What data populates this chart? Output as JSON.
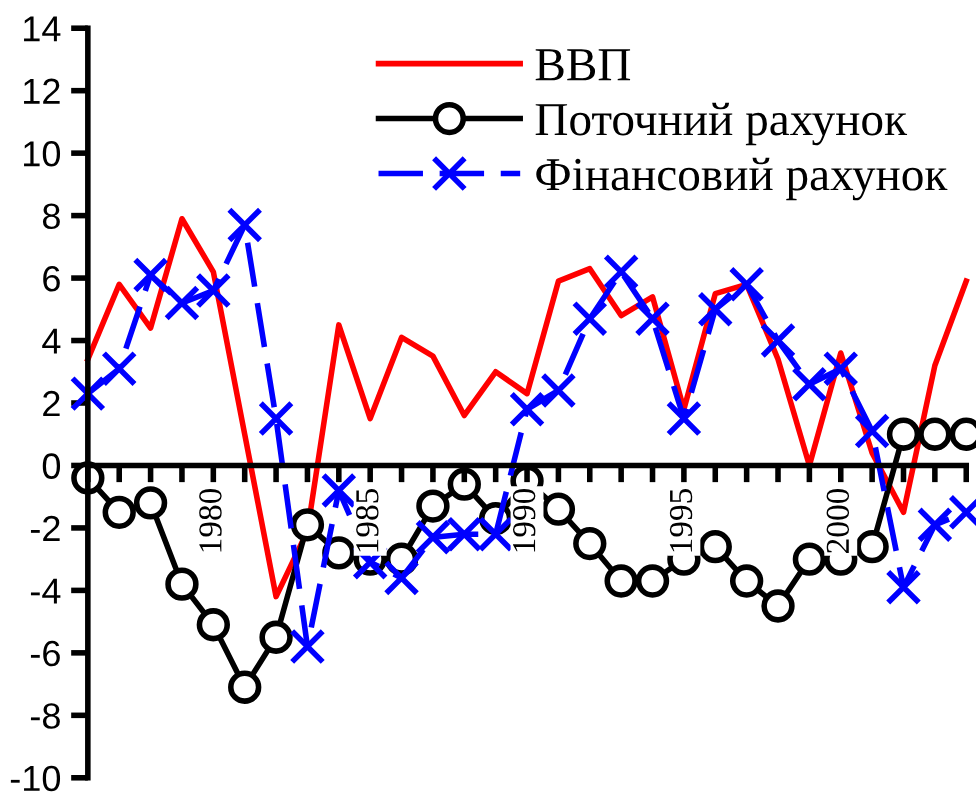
{
  "chart_data": {
    "type": "line",
    "x": [
      1976,
      1977,
      1978,
      1979,
      1980,
      1981,
      1982,
      1983,
      1984,
      1985,
      1986,
      1987,
      1988,
      1989,
      1990,
      1991,
      1992,
      1993,
      1994,
      1995,
      1996,
      1997,
      1998,
      1999,
      2000,
      2001,
      2002,
      2003,
      2004
    ],
    "series": [
      {
        "name": "ВВП",
        "color": "#ff0000",
        "marker": "none",
        "line_style": "solid",
        "values": [
          3.4,
          5.8,
          4.4,
          7.9,
          6.2,
          1.0,
          -4.2,
          -2.1,
          4.5,
          1.5,
          4.1,
          3.5,
          1.6,
          3.0,
          2.3,
          5.9,
          6.3,
          4.8,
          5.4,
          1.8,
          5.5,
          5.8,
          3.4,
          0.0,
          3.6,
          0.4,
          -1.5,
          3.2,
          5.9
        ]
      },
      {
        "name": "Поточний рахунок",
        "color": "#000000",
        "marker": "circle",
        "line_style": "solid",
        "values": [
          -0.4,
          -1.5,
          -1.2,
          -3.8,
          -5.1,
          -7.1,
          -5.5,
          -1.9,
          -2.8,
          -3.0,
          -3.0,
          -1.3,
          -0.6,
          -1.7,
          -0.5,
          -1.4,
          -2.5,
          -3.7,
          -3.7,
          -3.0,
          -2.6,
          -3.7,
          -4.5,
          -3.0,
          -3.0,
          -2.6,
          1.0,
          1.0,
          1.0
        ]
      },
      {
        "name": "Фінансовий рахунок",
        "color": "#0000ff",
        "marker": "cross",
        "line_style": "dashed",
        "values": [
          2.3,
          3.1,
          6.1,
          5.2,
          5.6,
          7.7,
          1.5,
          -5.8,
          -0.8,
          -3.1,
          -3.6,
          -2.3,
          -2.2,
          -2.2,
          1.8,
          2.4,
          4.7,
          6.2,
          4.7,
          1.5,
          5.0,
          5.8,
          4.0,
          2.6,
          3.1,
          1.1,
          -3.9,
          -1.9,
          -1.5
        ]
      }
    ],
    "xlim": [
      1976,
      2004
    ],
    "xticks": [
      {
        "value": 1976,
        "label": null
      },
      {
        "value": 1977,
        "label": null
      },
      {
        "value": 1978,
        "label": null
      },
      {
        "value": 1979,
        "label": null
      },
      {
        "value": 1980,
        "label": "1980"
      },
      {
        "value": 1981,
        "label": null
      },
      {
        "value": 1982,
        "label": null
      },
      {
        "value": 1983,
        "label": null
      },
      {
        "value": 1984,
        "label": null
      },
      {
        "value": 1985,
        "label": "1985"
      },
      {
        "value": 1986,
        "label": null
      },
      {
        "value": 1987,
        "label": null
      },
      {
        "value": 1988,
        "label": null
      },
      {
        "value": 1989,
        "label": null
      },
      {
        "value": 1990,
        "label": "1990"
      },
      {
        "value": 1991,
        "label": null
      },
      {
        "value": 1992,
        "label": null
      },
      {
        "value": 1993,
        "label": null
      },
      {
        "value": 1994,
        "label": null
      },
      {
        "value": 1995,
        "label": "1995"
      },
      {
        "value": 1996,
        "label": null
      },
      {
        "value": 1997,
        "label": null
      },
      {
        "value": 1998,
        "label": null
      },
      {
        "value": 1999,
        "label": null
      },
      {
        "value": 2000,
        "label": "2000"
      },
      {
        "value": 2001,
        "label": null
      },
      {
        "value": 2002,
        "label": null
      },
      {
        "value": 2003,
        "label": null
      },
      {
        "value": 2004,
        "label": null
      }
    ],
    "ylim": [
      -10,
      14
    ],
    "yticks": [
      -10,
      -8,
      -6,
      -4,
      -2,
      0,
      2,
      4,
      6,
      8,
      10,
      12,
      14
    ],
    "grid": false,
    "legend": "top right"
  }
}
